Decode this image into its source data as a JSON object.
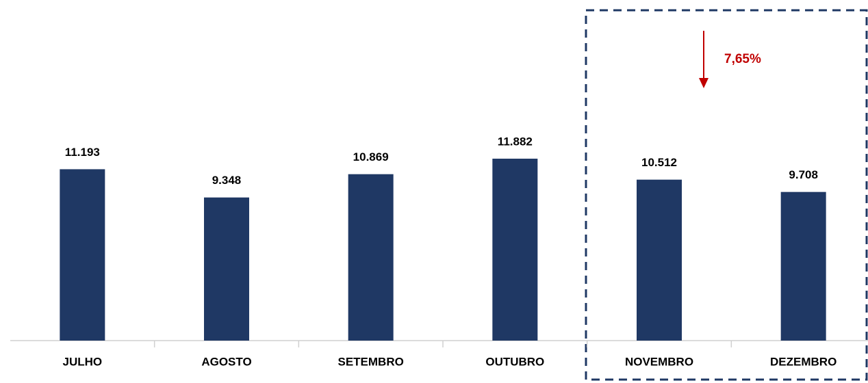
{
  "chart_data": {
    "type": "bar",
    "categories": [
      "JULHO",
      "AGOSTO",
      "SETEMBRO",
      "OUTUBRO",
      "NOVEMBRO",
      "DEZEMBRO"
    ],
    "values": [
      11193,
      9348,
      10869,
      11882,
      10512,
      9708
    ],
    "value_labels": [
      "11.193",
      "9.348",
      "10.869",
      "11.882",
      "10.512",
      "9.708"
    ],
    "color": "#1f3864",
    "annotation": "7,65%"
  }
}
